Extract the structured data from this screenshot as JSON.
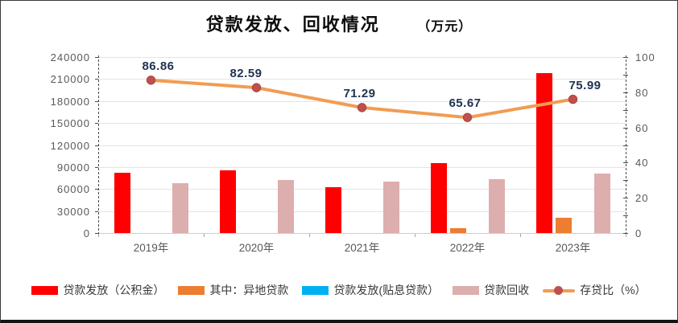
{
  "title": {
    "main": "贷款发放、回收情况",
    "unit": "（万元）"
  },
  "chart_data": {
    "type": "bar",
    "title": "贷款发放、回收情况（万元）",
    "categories": [
      "2019年",
      "2020年",
      "2021年",
      "2022年",
      "2023年"
    ],
    "bar_series": [
      {
        "name": "贷款发放（公积金）",
        "color": "#fe0000",
        "values": [
          82000,
          85000,
          62000,
          95000,
          218000
        ]
      },
      {
        "name": "其中：异地贷款",
        "color": "#ed7d31",
        "values": [
          0,
          0,
          0,
          7000,
          21000
        ]
      },
      {
        "name": "贷款发放(贴息贷款）",
        "color": "#00b0f0",
        "values": [
          0,
          0,
          0,
          0,
          0
        ]
      },
      {
        "name": "贷款回收",
        "color": "#ddaeae",
        "values": [
          68000,
          72000,
          70500,
          73000,
          81000
        ]
      }
    ],
    "line_series": {
      "name": "存贷比（%）",
      "color": "#f19c53",
      "marker_color": "#c0504d",
      "marker_edge": "#a8443f",
      "values": [
        86.86,
        82.59,
        71.29,
        65.67,
        75.99
      ],
      "labels": [
        "86.86",
        "82.59",
        "71.29",
        "65.67",
        "75.99"
      ]
    },
    "left_axis": {
      "min": 0,
      "max": 240000,
      "step": 30000,
      "ticks": [
        "0",
        "30000",
        "60000",
        "90000",
        "120000",
        "150000",
        "180000",
        "210000",
        "240000"
      ]
    },
    "right_axis": {
      "min": 0,
      "max": 100,
      "step": 20,
      "ticks": [
        "0",
        "20",
        "40",
        "60",
        "80",
        "100"
      ]
    },
    "grid": true,
    "legend_position": "bottom"
  }
}
